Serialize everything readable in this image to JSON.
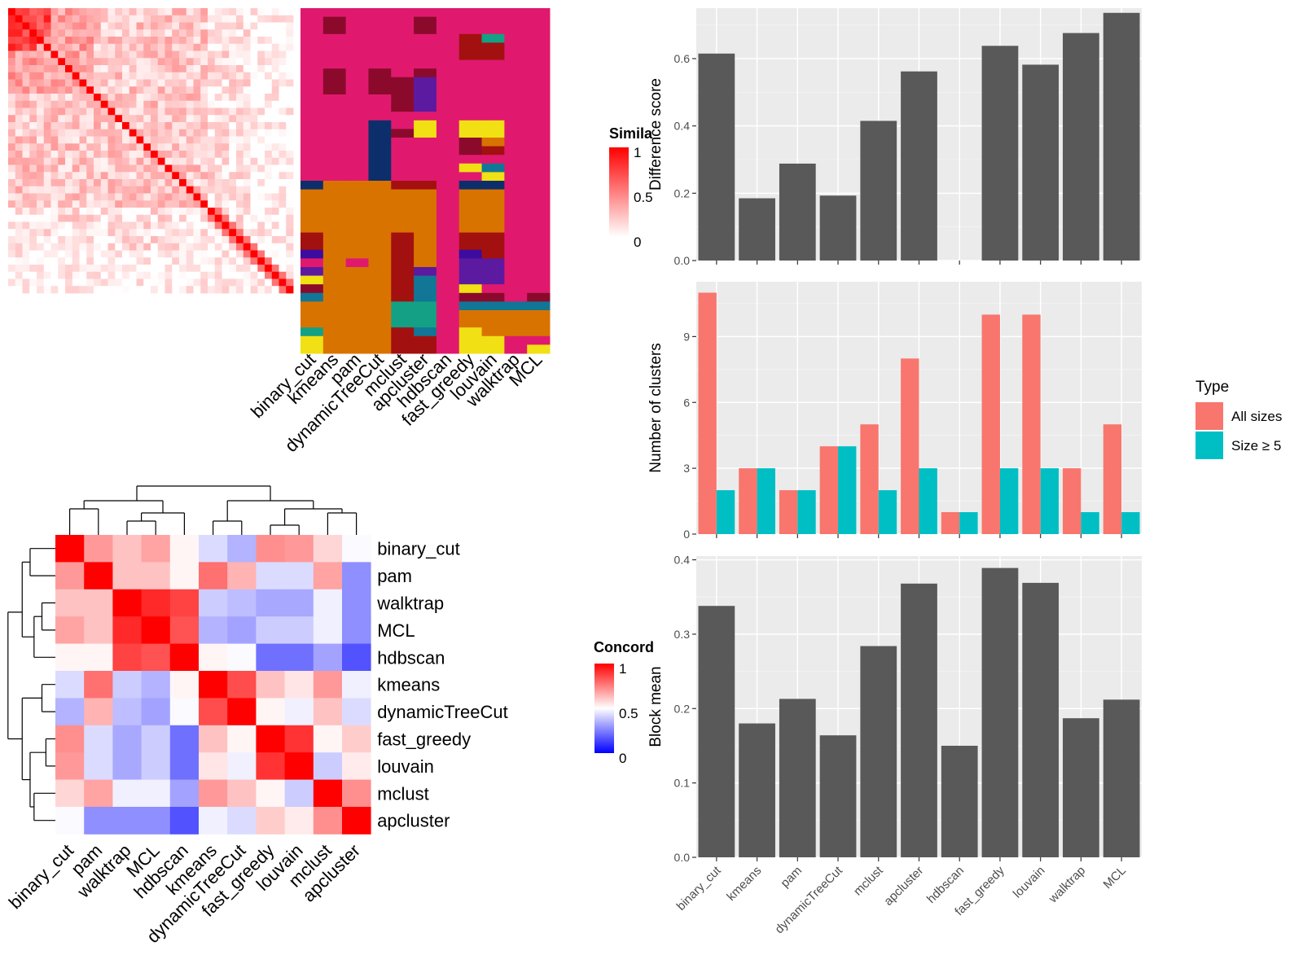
{
  "methods_order": [
    "binary_cut",
    "kmeans",
    "pam",
    "dynamicTreeCut",
    "mclust",
    "apcluster",
    "hdbscan",
    "fast_greedy",
    "louvain",
    "walktrap",
    "MCL"
  ],
  "similarity_heatmap": {
    "legend_title": "Simila",
    "legend_ticks": [
      "1",
      "0.5",
      "0"
    ],
    "colors": {
      "low": "#ffffff",
      "high": "#ff0000"
    },
    "n_terms": 40
  },
  "class_panel": {
    "columns": [
      "binary_cut",
      "kmeans",
      "pam",
      "dynamicTreeCut",
      "mclust",
      "apcluster",
      "hdbscan",
      "fast_greedy",
      "louvain",
      "walktrap",
      "MCL"
    ],
    "palette": {
      "pink": "#e0196e",
      "darkred": "#8b0a2c",
      "red": "#a31010",
      "orange": "#d97300",
      "navy": "#0c2f6b",
      "purple": "#3b0c9e",
      "violet": "#5b1aa0",
      "yellow": "#f0e014",
      "teal": "#127696",
      "green": "#14a085"
    }
  },
  "concordance_heatmap": {
    "legend_title": "Concord",
    "legend_ticks": [
      "1",
      "0.5",
      "0"
    ],
    "colors": {
      "low": "#0000ff",
      "mid": "#ffffff",
      "high": "#ff0000"
    },
    "row_labels": [
      "binary_cut",
      "pam",
      "walktrap",
      "MCL",
      "hdbscan",
      "kmeans",
      "dynamicTreeCut",
      "fast_greedy",
      "louvain",
      "mclust",
      "apcluster"
    ],
    "col_labels": [
      "binary_cut",
      "pam",
      "walktrap",
      "MCL",
      "hdbscan",
      "kmeans",
      "dynamicTreeCut",
      "fast_greedy",
      "louvain",
      "mclust",
      "apcluster"
    ],
    "matrix": [
      [
        1.0,
        0.7,
        0.62,
        0.68,
        0.52,
        0.43,
        0.35,
        0.72,
        0.7,
        0.58,
        0.49
      ],
      [
        0.7,
        1.0,
        0.62,
        0.62,
        0.52,
        0.78,
        0.65,
        0.43,
        0.43,
        0.68,
        0.28
      ],
      [
        0.62,
        0.62,
        1.0,
        0.92,
        0.87,
        0.4,
        0.37,
        0.33,
        0.33,
        0.47,
        0.28
      ],
      [
        0.68,
        0.62,
        0.92,
        1.0,
        0.84,
        0.35,
        0.32,
        0.4,
        0.4,
        0.47,
        0.28
      ],
      [
        0.52,
        0.52,
        0.87,
        0.84,
        1.0,
        0.52,
        0.49,
        0.22,
        0.22,
        0.32,
        0.16
      ],
      [
        0.43,
        0.78,
        0.4,
        0.35,
        0.52,
        1.0,
        0.85,
        0.62,
        0.55,
        0.7,
        0.47
      ],
      [
        0.35,
        0.65,
        0.37,
        0.32,
        0.49,
        0.85,
        1.0,
        0.52,
        0.47,
        0.62,
        0.43
      ],
      [
        0.72,
        0.43,
        0.33,
        0.4,
        0.22,
        0.62,
        0.52,
        1.0,
        0.9,
        0.52,
        0.6
      ],
      [
        0.7,
        0.43,
        0.33,
        0.4,
        0.22,
        0.55,
        0.47,
        0.9,
        1.0,
        0.4,
        0.54
      ],
      [
        0.58,
        0.68,
        0.47,
        0.47,
        0.32,
        0.7,
        0.62,
        0.52,
        0.4,
        1.0,
        0.72
      ],
      [
        0.49,
        0.28,
        0.28,
        0.28,
        0.16,
        0.47,
        0.43,
        0.6,
        0.54,
        0.72,
        1.0
      ]
    ]
  },
  "chart_data": [
    {
      "type": "bar",
      "categories": [
        "binary_cut",
        "kmeans",
        "pam",
        "dynamicTreeCut",
        "mclust",
        "apcluster",
        "hdbscan",
        "fast_greedy",
        "louvain",
        "walktrap",
        "MCL"
      ],
      "values": [
        0.615,
        0.185,
        0.288,
        0.193,
        0.415,
        0.562,
        null,
        0.638,
        0.582,
        0.676,
        0.736
      ],
      "xlabel": "",
      "ylabel": "Difference score",
      "ylim": [
        0,
        0.75
      ],
      "yticks": [
        0.0,
        0.2,
        0.4,
        0.6
      ],
      "ytick_labels": [
        "0.0",
        "0.2",
        "0.4",
        "0.6"
      ],
      "grid": true,
      "bar_color": "#595959"
    },
    {
      "type": "bar",
      "categories": [
        "binary_cut",
        "kmeans",
        "pam",
        "dynamicTreeCut",
        "mclust",
        "apcluster",
        "hdbscan",
        "fast_greedy",
        "louvain",
        "walktrap",
        "MCL"
      ],
      "series": [
        {
          "name": "All sizes",
          "color": "#f8766d",
          "values": [
            11,
            3,
            2,
            4,
            5,
            8,
            1,
            10,
            10,
            3,
            5
          ]
        },
        {
          "name": "Size ≥ 5",
          "color": "#00bfc4",
          "values": [
            2,
            3,
            2,
            4,
            2,
            3,
            1,
            3,
            3,
            1,
            1
          ]
        }
      ],
      "xlabel": "",
      "ylabel": "Number of clusters",
      "ylim": [
        0,
        11.5
      ],
      "yticks": [
        0,
        3,
        6,
        9
      ],
      "ytick_labels": [
        "0",
        "3",
        "6",
        "9"
      ],
      "grid": true,
      "legend": {
        "title": "Type",
        "position": "right"
      }
    },
    {
      "type": "bar",
      "categories": [
        "binary_cut",
        "kmeans",
        "pam",
        "dynamicTreeCut",
        "mclust",
        "apcluster",
        "hdbscan",
        "fast_greedy",
        "louvain",
        "walktrap",
        "MCL"
      ],
      "values": [
        0.338,
        0.18,
        0.213,
        0.164,
        0.284,
        0.368,
        0.15,
        0.389,
        0.369,
        0.187,
        0.212
      ],
      "xlabel": "",
      "ylabel": "Block mean",
      "ylim": [
        0,
        0.405
      ],
      "yticks": [
        0.0,
        0.1,
        0.2,
        0.3,
        0.4
      ],
      "ytick_labels": [
        "0.0",
        "0.1",
        "0.2",
        "0.3",
        "0.4"
      ],
      "grid": true,
      "bar_color": "#595959"
    }
  ]
}
